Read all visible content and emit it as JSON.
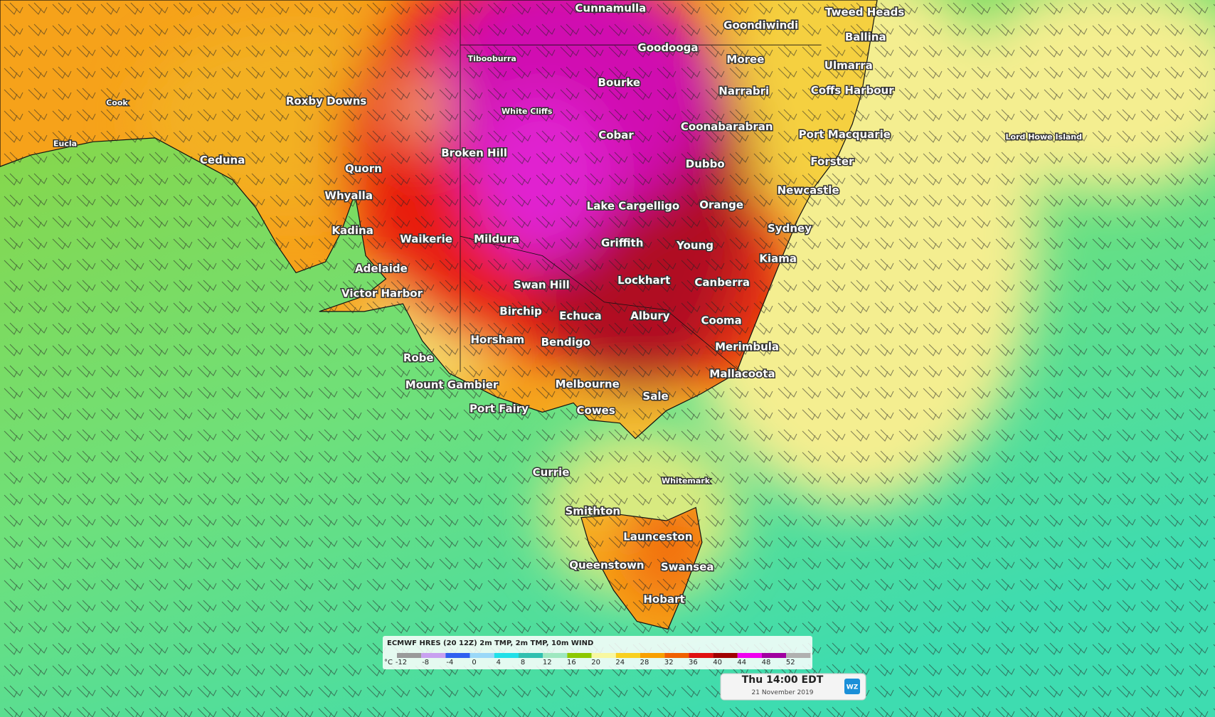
{
  "places": [
    "Cunnamulla",
    "Tweed Heads",
    "Goondiwindi",
    "Ballina",
    "Goodooga",
    "Moree",
    "Tibooburra",
    "Ulmarra",
    "Bourke",
    "Narrabri",
    "Coffs Harbour",
    "Cook",
    "Roxby Downs",
    "White Cliffs",
    "Coonabarabran",
    "Port Macquarie",
    "Lord Howe Island",
    "Cobar",
    "Eucla",
    "Broken Hill",
    "Ceduna",
    "Forster",
    "Dubbo",
    "Quorn",
    "Newcastle",
    "Whyalla",
    "Lake Cargelligo",
    "Orange",
    "Sydney",
    "Kadina",
    "Waikerie",
    "Mildura",
    "Griffith",
    "Young",
    "Kiama",
    "Adelaide",
    "Lockhart",
    "Swan Hill",
    "Canberra",
    "Victor Harbor",
    "Birchip",
    "Echuca",
    "Albury",
    "Cooma",
    "Horsham",
    "Bendigo",
    "Merimbula",
    "Robe",
    "Mallacoota",
    "Melbourne",
    "Mount Gambier",
    "Sale",
    "Port Fairy",
    "Cowes",
    "Currie",
    "Whitemark",
    "Smithton",
    "Launceston",
    "Queenstown",
    "Swansea",
    "Hobart"
  ],
  "legend": {
    "title": "ECMWF HRES (20 12Z) 2m TMP, 2m TMP, 10m WIND",
    "unit": "°C",
    "values": [
      -12,
      -8,
      -4,
      0,
      4,
      8,
      12,
      16,
      20,
      24,
      28,
      32,
      36,
      40,
      44,
      48,
      52
    ],
    "colors": [
      "#9a9a9a",
      "#c8a0f0",
      "#3060f0",
      "#9ad8f8",
      "#20e0e8",
      "#30c0b0",
      "#9ee8c0",
      "#8cc800",
      "#f8f8a0",
      "#f8d020",
      "#f8a000",
      "#f06000",
      "#e01010",
      "#a00000",
      "#f000f0",
      "#a000a0",
      "#b0b0b0"
    ]
  },
  "timestamp": {
    "time": "Thu 14:00 EDT",
    "date": "21 November 2019"
  },
  "logo": "WZ"
}
